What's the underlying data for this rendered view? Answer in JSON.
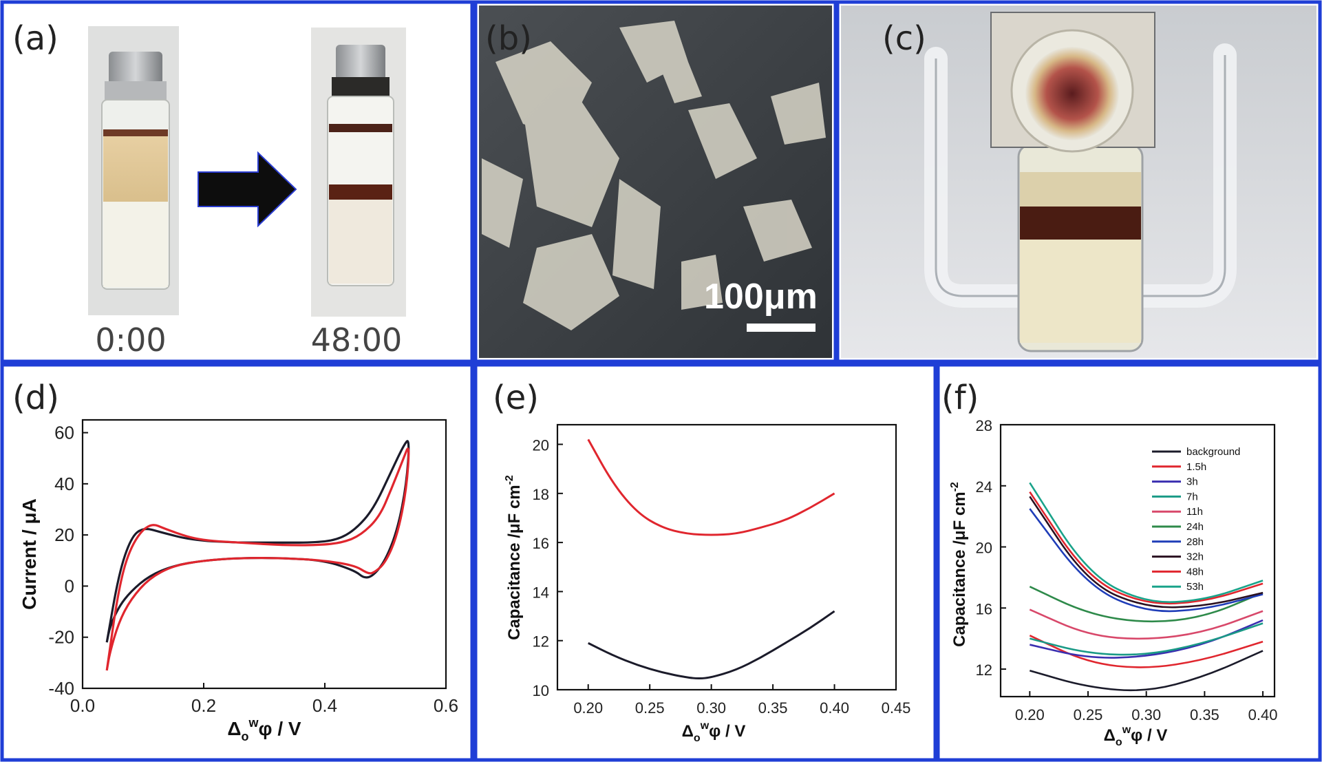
{
  "panels": {
    "a": {
      "label": "(a)",
      "caption_left": "0:00",
      "caption_right": "48:00"
    },
    "b": {
      "label": "(b)",
      "scale_bar": "100μm"
    },
    "c": {
      "label": "(c)"
    },
    "d": {
      "label": "(d)"
    },
    "e": {
      "label": "(e)"
    },
    "f": {
      "label": "(f)"
    }
  },
  "colors": {
    "frame": "#1f3ed6",
    "red": "#e0262e",
    "black": "#1b1b2a"
  },
  "chart_data": [
    {
      "id": "d",
      "type": "line",
      "xlabel": "Δowφ / V",
      "ylabel": "Current / μA",
      "xlim": [
        0.0,
        0.6
      ],
      "ylim": [
        -40,
        65
      ],
      "xticks": [
        "0.0",
        "0.2",
        "0.4",
        "0.6"
      ],
      "yticks": [
        "-40",
        "-20",
        "0",
        "20",
        "40",
        "60"
      ],
      "series": [
        {
          "color": "#1b1b2a",
          "x": [
            0.04,
            0.06,
            0.08,
            0.1,
            0.13,
            0.18,
            0.25,
            0.32,
            0.38,
            0.42,
            0.45,
            0.48,
            0.51,
            0.53,
            0.54,
            0.535,
            0.52,
            0.5,
            0.48,
            0.465,
            0.45,
            0.4,
            0.33,
            0.26,
            0.2,
            0.15,
            0.11,
            0.08,
            0.06,
            0.045,
            0.04
          ],
          "y": [
            -22,
            5,
            19,
            23,
            21,
            18,
            17,
            17,
            17,
            18,
            22,
            30,
            45,
            55,
            58,
            40,
            22,
            10,
            4,
            3,
            6,
            10,
            11,
            11,
            10,
            8,
            4,
            -2,
            -8,
            -16,
            -22
          ]
        },
        {
          "color": "#e0262e",
          "x": [
            0.04,
            0.06,
            0.08,
            0.11,
            0.14,
            0.19,
            0.26,
            0.33,
            0.39,
            0.43,
            0.46,
            0.49,
            0.51,
            0.53,
            0.54,
            0.535,
            0.52,
            0.5,
            0.48,
            0.47,
            0.45,
            0.4,
            0.33,
            0.26,
            0.2,
            0.15,
            0.11,
            0.08,
            0.06,
            0.045,
            0.04
          ],
          "y": [
            -33,
            0,
            16,
            25,
            22,
            18,
            17,
            16,
            16,
            17,
            20,
            27,
            38,
            50,
            56,
            38,
            20,
            9,
            5,
            5,
            8,
            10,
            11,
            11,
            10,
            8,
            3,
            -5,
            -14,
            -26,
            -33
          ]
        }
      ]
    },
    {
      "id": "e",
      "type": "line",
      "xlabel": "Δowφ / V",
      "ylabel": "Capacitance /μF cm-2",
      "xlim": [
        0.175,
        0.45
      ],
      "ylim": [
        10,
        20.8
      ],
      "xticks": [
        "0.20",
        "0.25",
        "0.30",
        "0.35",
        "0.40",
        "0.45"
      ],
      "yticks": [
        "10",
        "12",
        "14",
        "16",
        "18",
        "20"
      ],
      "series": [
        {
          "color": "#e0262e",
          "x": [
            0.2,
            0.22,
            0.24,
            0.26,
            0.28,
            0.3,
            0.32,
            0.34,
            0.36,
            0.38,
            0.4
          ],
          "y": [
            20.2,
            18.4,
            17.2,
            16.6,
            16.35,
            16.3,
            16.35,
            16.6,
            16.9,
            17.4,
            18.0
          ]
        },
        {
          "color": "#1b1b2a",
          "x": [
            0.2,
            0.22,
            0.24,
            0.26,
            0.28,
            0.29,
            0.3,
            0.32,
            0.34,
            0.36,
            0.38,
            0.4
          ],
          "y": [
            11.9,
            11.4,
            11.0,
            10.7,
            10.5,
            10.45,
            10.5,
            10.8,
            11.3,
            11.9,
            12.5,
            13.2
          ]
        }
      ]
    },
    {
      "id": "f",
      "type": "line",
      "xlabel": "Δowφ / V",
      "ylabel": "Capacitance /μF cm-2",
      "xlim": [
        0.175,
        0.41
      ],
      "ylim": [
        10.2,
        28
      ],
      "xticks": [
        "0.20",
        "0.25",
        "0.30",
        "0.35",
        "0.40"
      ],
      "yticks": [
        "12",
        "16",
        "20",
        "24",
        "28"
      ],
      "legend_position": "top-right",
      "series": [
        {
          "name": "background",
          "color": "#1b1b2a",
          "x": [
            0.2,
            0.25,
            0.3,
            0.35,
            0.4
          ],
          "y": [
            11.9,
            10.8,
            10.5,
            11.5,
            13.2
          ]
        },
        {
          "name": "1.5h",
          "color": "#e0262e",
          "x": [
            0.2,
            0.25,
            0.3,
            0.35,
            0.4
          ],
          "y": [
            14.2,
            12.4,
            12.0,
            12.6,
            13.8
          ]
        },
        {
          "name": "3h",
          "color": "#3a2fb0",
          "x": [
            0.2,
            0.25,
            0.3,
            0.35,
            0.4
          ],
          "y": [
            13.6,
            12.7,
            12.8,
            13.6,
            15.2
          ]
        },
        {
          "name": "7h",
          "color": "#1a9a86",
          "x": [
            0.2,
            0.25,
            0.3,
            0.35,
            0.4
          ],
          "y": [
            14.0,
            13.0,
            12.9,
            13.7,
            15.0
          ]
        },
        {
          "name": "11h",
          "color": "#d8486a",
          "x": [
            0.2,
            0.25,
            0.3,
            0.35,
            0.4
          ],
          "y": [
            15.9,
            14.2,
            13.9,
            14.4,
            15.8
          ]
        },
        {
          "name": "24h",
          "color": "#2e8a4a",
          "x": [
            0.2,
            0.25,
            0.3,
            0.35,
            0.4
          ],
          "y": [
            17.4,
            15.6,
            15.0,
            15.4,
            17.0
          ]
        },
        {
          "name": "28h",
          "color": "#1f3db8",
          "x": [
            0.2,
            0.25,
            0.3,
            0.35,
            0.4
          ],
          "y": [
            22.5,
            17.4,
            15.7,
            15.9,
            16.9
          ]
        },
        {
          "name": "32h",
          "color": "#2a1020",
          "x": [
            0.2,
            0.25,
            0.3,
            0.35,
            0.4
          ],
          "y": [
            23.3,
            17.6,
            16.0,
            16.1,
            17.0
          ]
        },
        {
          "name": "48h",
          "color": "#e0262e",
          "x": [
            0.2,
            0.25,
            0.3,
            0.35,
            0.4
          ],
          "y": [
            23.6,
            17.9,
            16.2,
            16.4,
            17.6
          ]
        },
        {
          "name": "53h",
          "color": "#1aa38a",
          "x": [
            0.2,
            0.25,
            0.3,
            0.35,
            0.4
          ],
          "y": [
            24.2,
            18.2,
            16.3,
            16.5,
            17.8
          ]
        }
      ]
    }
  ]
}
